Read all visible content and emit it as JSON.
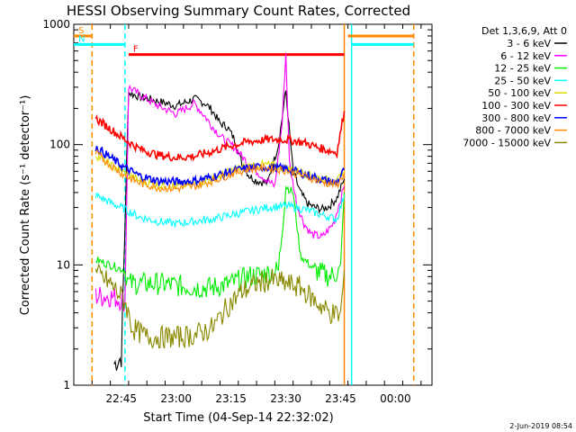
{
  "chart_data": {
    "type": "line",
    "title": "HESSI Observing Summary Count Rates, Corrected",
    "xlabel": "Start Time (04-Sep-14 22:32:02)",
    "ylabel": "Corrected Count Rate (s⁻¹ detector⁻¹)",
    "yscale": "log",
    "ylim": [
      1,
      1000
    ],
    "xlim": [
      "22:32",
      "00:10"
    ],
    "y_ticks": [
      1,
      10,
      100,
      1000
    ],
    "y_tick_labels": [
      "1",
      "10",
      "100",
      "1000"
    ],
    "x_ticks": [
      "22:45",
      "23:00",
      "23:15",
      "23:30",
      "23:45",
      "00:00"
    ],
    "legend_title": "Det 1,3,6,9, Att 0",
    "legend_placement": "right",
    "timestamp": "2-Jun-2019 08:54",
    "series": [
      {
        "name": "3 - 6 keV",
        "color": "#000000",
        "x": [
          "22:43",
          "22:44",
          "22:45",
          "22:47",
          "22:50",
          "22:55",
          "23:00",
          "23:05",
          "23:08",
          "23:10",
          "23:12",
          "23:14",
          "23:16",
          "23:18",
          "23:20",
          "23:22",
          "23:25",
          "23:28",
          "23:30",
          "23:32",
          "23:34",
          "23:36",
          "23:38",
          "23:40",
          "23:42",
          "23:44",
          "23:46"
        ],
        "y": [
          1.5,
          1.6,
          1.7,
          270,
          250,
          230,
          210,
          240,
          220,
          190,
          150,
          140,
          110,
          70,
          55,
          50,
          48,
          100,
          280,
          60,
          40,
          32,
          30,
          29,
          31,
          36,
          52
        ]
      },
      {
        "name": "6 - 12 keV",
        "color": "#ff00ff",
        "x": [
          "22:38",
          "22:42",
          "22:46",
          "22:47",
          "22:50",
          "22:55",
          "23:00",
          "23:05",
          "23:08",
          "23:10",
          "23:13",
          "23:16",
          "23:18",
          "23:20",
          "23:22",
          "23:25",
          "23:27",
          "23:29",
          "23:30",
          "23:31",
          "23:33",
          "23:35",
          "23:37",
          "23:40",
          "23:43",
          "23:46"
        ],
        "y": [
          5.5,
          5.5,
          5,
          300,
          260,
          210,
          180,
          220,
          170,
          140,
          110,
          95,
          80,
          68,
          60,
          50,
          45,
          150,
          580,
          70,
          32,
          22,
          18,
          17,
          22,
          45
        ]
      },
      {
        "name": "12 - 25 keV",
        "color": "#00ee00",
        "x": [
          "22:38",
          "22:42",
          "22:46",
          "22:47",
          "22:55",
          "23:05",
          "23:10",
          "23:15",
          "23:20",
          "23:25",
          "23:28",
          "23:30",
          "23:32",
          "23:34",
          "23:38",
          "23:42",
          "23:45",
          "23:46"
        ],
        "y": [
          11,
          10,
          9,
          7,
          7,
          6.5,
          6.5,
          7,
          8,
          8.5,
          9,
          45,
          40,
          12,
          9,
          8,
          9,
          40
        ]
      },
      {
        "name": "25 - 50 keV",
        "color": "#00ffff",
        "x": [
          "22:38",
          "22:42",
          "22:46",
          "22:50",
          "22:55",
          "23:00",
          "23:05",
          "23:10",
          "23:15",
          "23:20",
          "23:25",
          "23:30",
          "23:35",
          "23:40",
          "23:44",
          "23:46"
        ],
        "y": [
          38,
          33,
          29,
          25,
          23,
          22,
          23,
          24,
          26,
          28,
          30,
          31,
          29,
          26,
          24,
          38
        ]
      },
      {
        "name": "50 - 100 keV",
        "color": "#dddd00",
        "x": [
          "22:38",
          "22:42",
          "22:46",
          "22:50",
          "22:55",
          "23:00",
          "23:05",
          "23:10",
          "23:15",
          "23:20",
          "23:25",
          "23:30",
          "23:35",
          "23:40",
          "23:44",
          "23:46"
        ],
        "y": [
          82,
          68,
          58,
          50,
          46,
          45,
          47,
          52,
          60,
          67,
          68,
          64,
          58,
          52,
          49,
          60
        ]
      },
      {
        "name": "100 - 300 keV",
        "color": "#ff0000",
        "x": [
          "22:38",
          "22:42",
          "22:46",
          "22:50",
          "22:55",
          "23:00",
          "23:05",
          "23:10",
          "23:15",
          "23:20",
          "23:25",
          "23:30",
          "23:35",
          "23:40",
          "23:44",
          "23:46"
        ],
        "y": [
          165,
          135,
          110,
          92,
          82,
          78,
          80,
          88,
          98,
          106,
          110,
          110,
          104,
          92,
          86,
          190
        ]
      },
      {
        "name": "300 - 800 keV",
        "color": "#0000ff",
        "x": [
          "22:38",
          "22:42",
          "22:46",
          "22:50",
          "22:55",
          "23:00",
          "23:05",
          "23:10",
          "23:15",
          "23:20",
          "23:25",
          "23:30",
          "23:35",
          "23:40",
          "23:44",
          "23:46"
        ],
        "y": [
          95,
          78,
          64,
          55,
          50,
          49,
          50,
          54,
          60,
          64,
          65,
          63,
          57,
          51,
          48,
          62
        ]
      },
      {
        "name": "800 - 7000 keV",
        "color": "#ff8800",
        "x": [
          "22:38",
          "22:42",
          "22:46",
          "22:50",
          "22:55",
          "23:00",
          "23:05",
          "23:10",
          "23:15",
          "23:20",
          "23:25",
          "23:30",
          "23:35",
          "23:40",
          "23:44",
          "23:46"
        ],
        "y": [
          85,
          68,
          55,
          48,
          44,
          43,
          45,
          50,
          57,
          63,
          64,
          61,
          55,
          49,
          46,
          58
        ]
      },
      {
        "name": "7000 - 15000 keV",
        "color": "#888800",
        "x": [
          "22:38",
          "22:42",
          "22:46",
          "22:48",
          "22:52",
          "22:55",
          "23:00",
          "23:05",
          "23:10",
          "23:14",
          "23:18",
          "23:22",
          "23:26",
          "23:30",
          "23:34",
          "23:38",
          "23:42",
          "23:45",
          "23:46"
        ],
        "y": [
          8.5,
          7,
          5,
          3,
          2.5,
          2.5,
          2.5,
          2.6,
          3,
          4.5,
          6,
          7,
          7.5,
          7,
          6.5,
          5,
          4,
          3.8,
          9
        ]
      }
    ],
    "state_bars": [
      {
        "label": "S",
        "color": "#ff8800",
        "x": [
          "22:32",
          "22:37"
        ],
        "y": 800
      },
      {
        "label": "N",
        "color": "#00ffff",
        "x": [
          "22:32",
          "22:46"
        ],
        "y": 680
      },
      {
        "label": "F",
        "color": "#ff0000",
        "x": [
          "22:47",
          "23:46"
        ],
        "y": 560
      },
      {
        "label": "",
        "color": "#ff8800",
        "x": [
          "23:47",
          "00:05"
        ],
        "y": 800
      },
      {
        "label": "",
        "color": "#00ffff",
        "x": [
          "23:48",
          "00:05"
        ],
        "y": 680
      }
    ],
    "vertical_lines": [
      {
        "x": "22:37",
        "color": "#ff8800",
        "style": "dashed"
      },
      {
        "x": "22:46",
        "color": "#00ffff",
        "style": "dashed"
      },
      {
        "x": "23:46",
        "color": "#ff8800",
        "style": "solid"
      },
      {
        "x": "23:48",
        "color": "#00ffff",
        "style": "solid"
      },
      {
        "x": "00:05",
        "color": "#ff8800",
        "style": "dashed"
      }
    ]
  }
}
